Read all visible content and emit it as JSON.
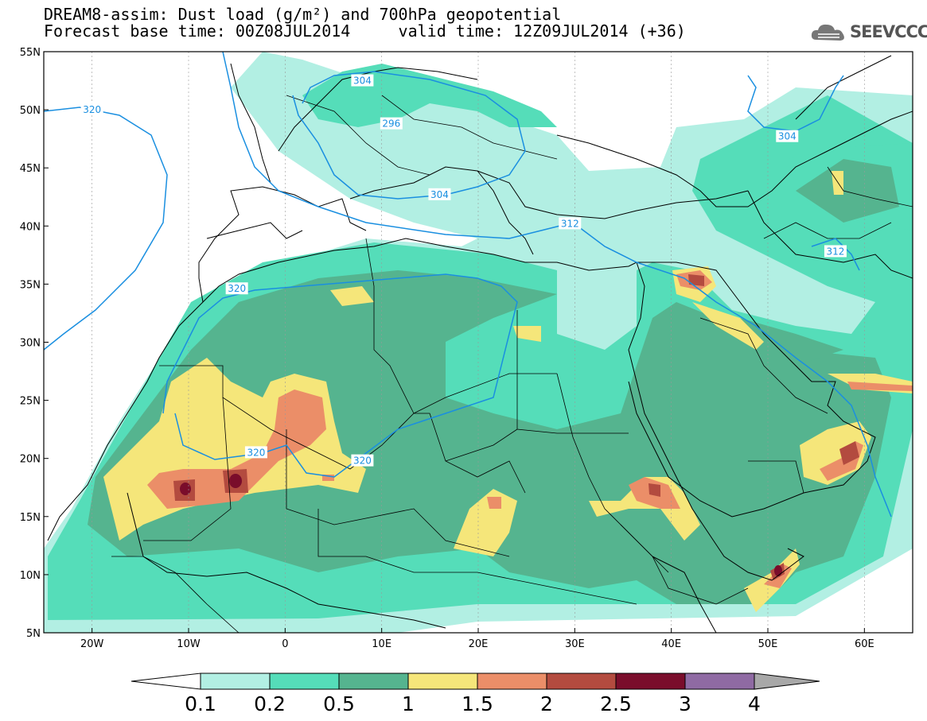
{
  "header": {
    "model": "DREAM8-assim:",
    "variable": "Dust load (g/m²) and 700hPa geopotential",
    "base_label": "Forecast base time:",
    "base_time": "00Z08JUL2014",
    "valid_label": "valid time:",
    "valid_time": "12Z09JUL2014 (+36)"
  },
  "logo": {
    "text": "SEEVCCC",
    "icon": "cloud-icon"
  },
  "map": {
    "lon_range": [
      -25,
      65
    ],
    "lat_range": [
      5,
      55
    ],
    "lon_ticks": [
      "20W",
      "10W",
      "0",
      "10E",
      "20E",
      "30E",
      "40E",
      "50E",
      "60E"
    ],
    "lat_ticks": [
      "55N",
      "50N",
      "45N",
      "40N",
      "35N",
      "30N",
      "25N",
      "20N",
      "15N",
      "10N",
      "5N"
    ],
    "contour_color": "#1a8fe0",
    "contour_labels": [
      {
        "text": "320",
        "lon": -20,
        "lat": 50
      },
      {
        "text": "304",
        "lon": 8,
        "lat": 52.5
      },
      {
        "text": "296",
        "lon": 11,
        "lat": 48.8
      },
      {
        "text": "304",
        "lon": 16,
        "lat": 42.7
      },
      {
        "text": "312",
        "lon": 29.5,
        "lat": 40.2
      },
      {
        "text": "304",
        "lon": 52,
        "lat": 47.7
      },
      {
        "text": "312",
        "lon": 57,
        "lat": 37.8
      },
      {
        "text": "320",
        "lon": -5,
        "lat": 34.6
      },
      {
        "text": "320",
        "lon": -3,
        "lat": 20.5
      },
      {
        "text": "320",
        "lon": 8,
        "lat": 19.8
      }
    ]
  },
  "colorbar": {
    "colors": [
      "#ffffff",
      "#b2efe3",
      "#55ddb9",
      "#55b48f",
      "#f5e67a",
      "#eb8e68",
      "#b34b3f",
      "#7a0d2b",
      "#8f6aa3",
      "#a8a8a8"
    ],
    "ticks": [
      "0.1",
      "0.2",
      "0.5",
      "1",
      "1.5",
      "2",
      "2.5",
      "3",
      "4"
    ]
  }
}
